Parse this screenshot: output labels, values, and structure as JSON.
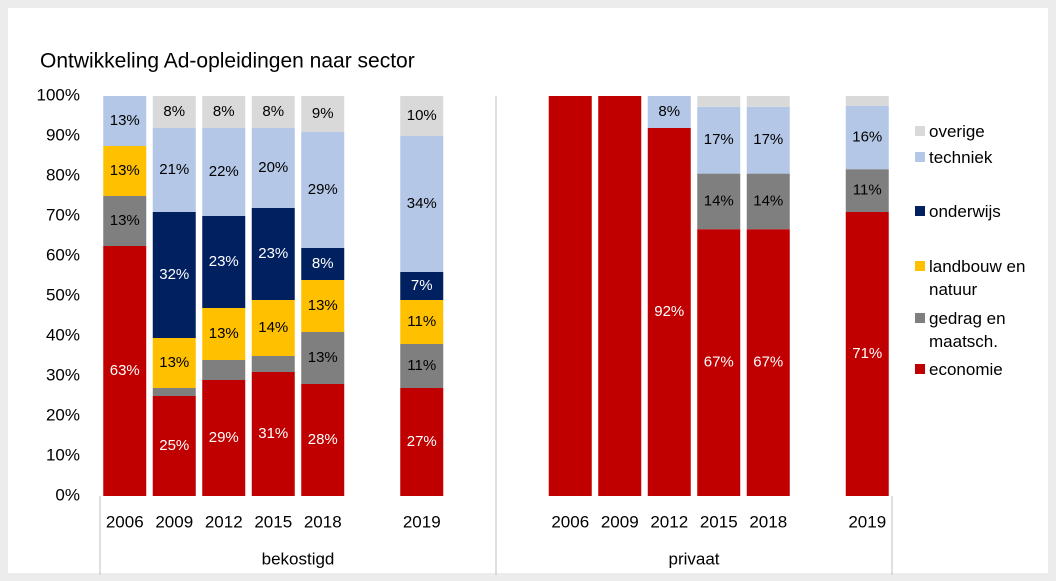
{
  "chart_data": {
    "type": "stacked_bar",
    "title": "Ontwikkeling Ad-opleidingen naar sector",
    "categories": [
      "2006",
      "2009",
      "2012",
      "2015",
      "2018",
      null,
      "2019",
      null,
      null,
      "2006",
      "2009",
      "2012",
      "2015",
      "2018",
      null,
      "2019"
    ],
    "groups": [
      "bekostigd",
      "privaat"
    ],
    "ylim": [
      0,
      100
    ],
    "yticks": [
      {
        "value": 0,
        "label": "0%"
      },
      {
        "value": 10,
        "label": "10%"
      },
      {
        "value": 20,
        "label": "20%"
      },
      {
        "value": 30,
        "label": "30%"
      },
      {
        "value": 40,
        "label": "40%"
      },
      {
        "value": 50,
        "label": "50%"
      },
      {
        "value": 60,
        "label": "60%"
      },
      {
        "value": 70,
        "label": "70%"
      },
      {
        "value": 80,
        "label": "80%"
      },
      {
        "value": 90,
        "label": "90%"
      },
      {
        "value": 100,
        "label": "100%"
      }
    ],
    "series": [
      {
        "name": "economie",
        "color": "#c00000",
        "values": [
          62.5,
          25,
          29,
          31,
          28,
          null,
          27,
          null,
          null,
          100,
          100,
          92,
          66.7,
          66.7,
          null,
          71
        ],
        "value_labels": [
          "63%",
          "25%",
          "29%",
          "31%",
          "28%",
          null,
          "27%",
          null,
          null,
          null,
          null,
          "92%",
          "67%",
          "67%",
          null,
          "71%"
        ]
      },
      {
        "name": "gedrag en maatsch.",
        "color": "#7f7f7f",
        "values": [
          12.5,
          2,
          5,
          4,
          13,
          null,
          11,
          null,
          null,
          0,
          0,
          0,
          13.9,
          13.9,
          null,
          10.7
        ],
        "value_labels": [
          "13%",
          null,
          null,
          null,
          "13%",
          null,
          "11%",
          null,
          null,
          null,
          null,
          null,
          "14%",
          "14%",
          null,
          "11%"
        ]
      },
      {
        "name": "landbouw en natuur",
        "color": "#ffc000",
        "values": [
          12.5,
          12.5,
          13,
          14,
          13,
          null,
          11,
          null,
          null,
          0,
          0,
          0,
          0,
          0,
          null,
          0
        ],
        "value_labels": [
          "13%",
          "13%",
          "13%",
          "14%",
          "13%",
          null,
          "11%",
          null,
          null,
          null,
          null,
          null,
          null,
          null,
          null,
          null
        ]
      },
      {
        "name": "onderwijs",
        "color": "#002060",
        "values": [
          0,
          31.5,
          23,
          23,
          8,
          null,
          7,
          null,
          null,
          0,
          0,
          0,
          0,
          0,
          null,
          0
        ],
        "value_labels": [
          null,
          "32%",
          "23%",
          "23%",
          "8%",
          null,
          "7%",
          null,
          null,
          null,
          null,
          null,
          null,
          null,
          null,
          null
        ]
      },
      {
        "name": "techniek",
        "color": "#b4c7e7",
        "values": [
          12.5,
          21,
          22,
          20,
          29,
          null,
          34,
          null,
          null,
          0,
          0,
          8,
          16.7,
          16.7,
          null,
          15.8
        ],
        "value_labels": [
          "13%",
          "21%",
          "22%",
          "20%",
          "29%",
          null,
          "34%",
          null,
          null,
          null,
          null,
          "8%",
          "17%",
          "17%",
          null,
          "16%"
        ]
      },
      {
        "name": "overige",
        "color": "#d9d9d9",
        "values": [
          0,
          8,
          8,
          8,
          9,
          null,
          10,
          null,
          null,
          0,
          0,
          0,
          2.7,
          2.7,
          null,
          2.5
        ],
        "value_labels": [
          null,
          "8%",
          "8%",
          "8%",
          "9%",
          null,
          "10%",
          null,
          null,
          null,
          null,
          null,
          null,
          null,
          null,
          null
        ]
      }
    ]
  }
}
